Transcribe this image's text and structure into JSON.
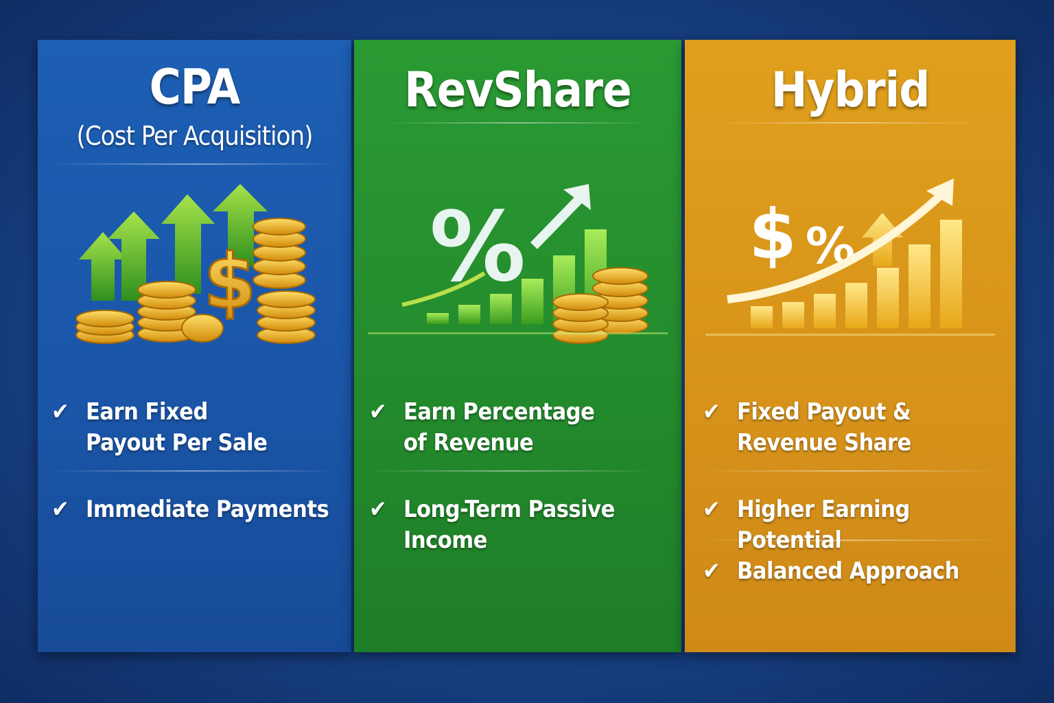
{
  "panels": [
    {
      "title": "CPA",
      "subtitle": "(Cost Per Acquisition)",
      "color": "#1a58aa",
      "icon": "coins-arrows-icon",
      "items": [
        "Earn Fixed Payout Per Sale",
        "Immediate Payments"
      ]
    },
    {
      "title": "RevShare",
      "color": "#248c2d",
      "icon": "percent-chart-icon",
      "items": [
        "Earn Percentage of Revenue",
        "Long-Term Passive Income"
      ]
    },
    {
      "title": "Hybrid",
      "color": "#d8941a",
      "icon": "dollar-percent-chart-icon",
      "items": [
        "Fixed Payout & Revenue Share",
        "Higher Earning Potential",
        "Balanced Approach"
      ]
    }
  ],
  "check_glyph": "✔"
}
